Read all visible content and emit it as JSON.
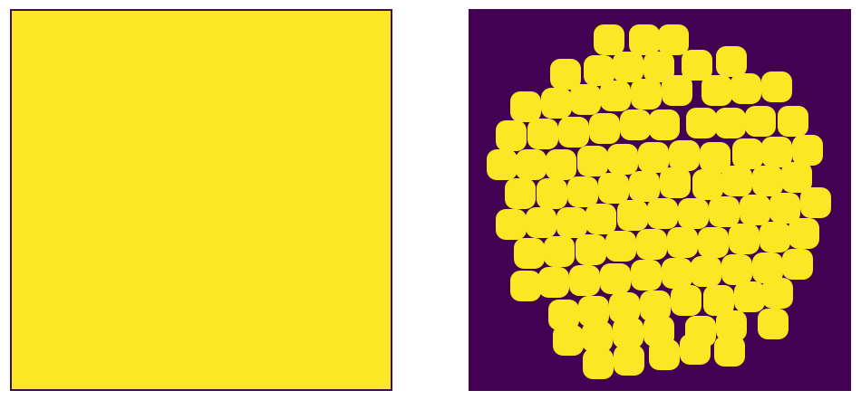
{
  "colors": {
    "background": "#ffffff",
    "fill_yellow": "#fde725",
    "dark_purple": "#440154",
    "frame": "#3b0f50"
  },
  "left_image": {
    "kind": "solid-mask",
    "fill_color": "#fde725"
  },
  "right_image": {
    "kind": "binary-mask-circles",
    "background_color": "#440154",
    "blob_color": "#fde725"
  }
}
